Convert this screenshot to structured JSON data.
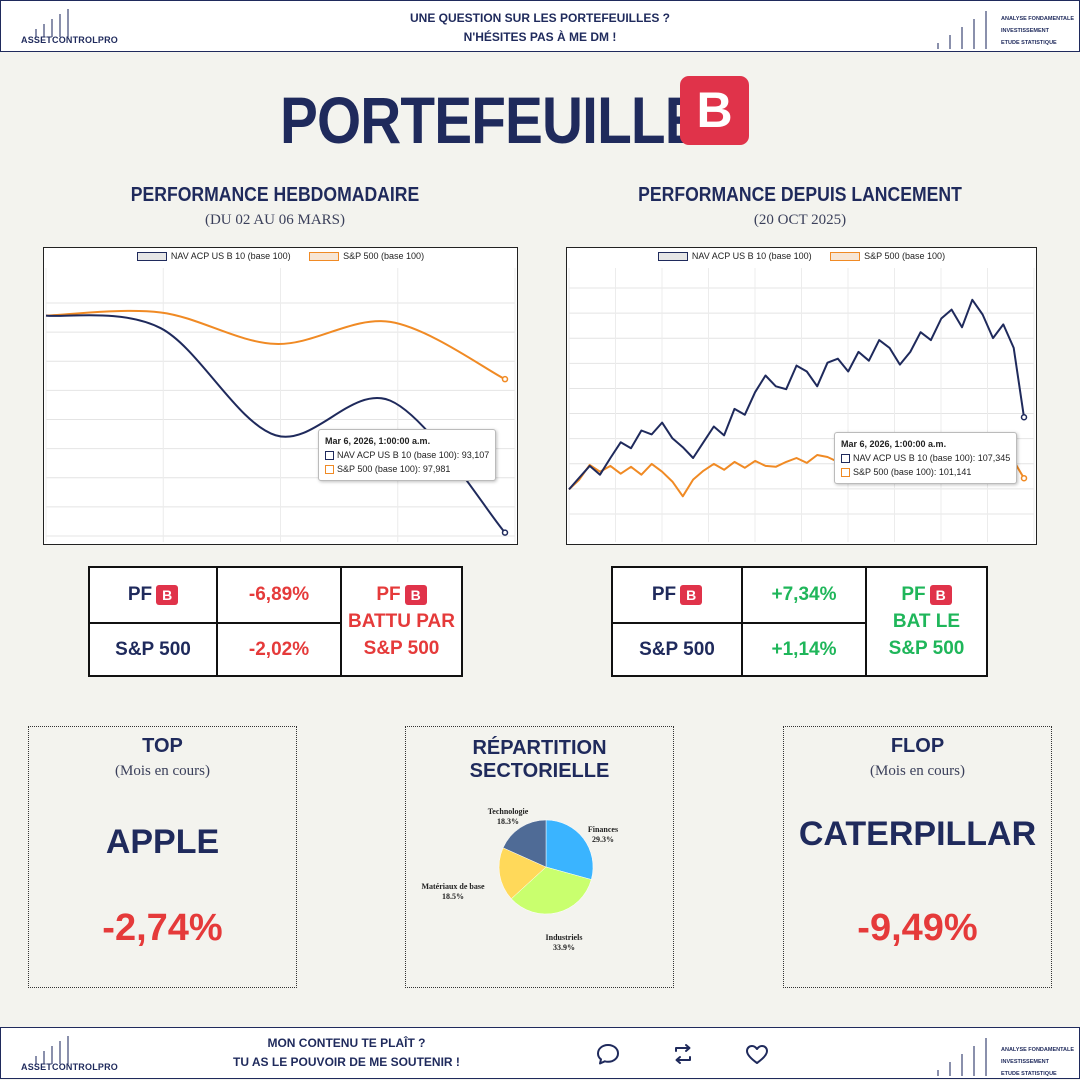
{
  "header": {
    "brand": "ASSETCONTROLPRO",
    "message_line1": "UNE QUESTION SUR LES PORTEFEUILLES ?",
    "message_line2": "N'HÉSITES PAS À ME DM !",
    "tags": [
      "ANALYSE FONDAMENTALE",
      "INVESTISSEMENT",
      "ETUDE STATISTIQUE"
    ]
  },
  "title": {
    "text": "PORTEFEUILLE",
    "badge": "B"
  },
  "weekly": {
    "heading": "PERFORMANCE HEBDOMADAIRE",
    "subheading": "(DU 02 AU 06 MARS)",
    "tooltip": {
      "date": "Mar 6, 2026, 1:00:00 a.m.",
      "nav": "NAV ACP US B 10 (base 100): 93,107",
      "sp": "S&P 500 (base 100): 97,981"
    },
    "table": {
      "row1_label": "PF",
      "row1_value": "-6,89%",
      "row2_label": "S&P 500",
      "row2_value": "-2,02%",
      "verdict_pf": "PF",
      "verdict_l2": "BATTU PAR",
      "verdict_l3": "S&P 500"
    }
  },
  "since_launch": {
    "heading": "PERFORMANCE DEPUIS LANCEMENT",
    "subheading": "(20 OCT 2025)",
    "tooltip": {
      "date": "Mar 6, 2026, 1:00:00 a.m.",
      "nav": "NAV ACP US B 10 (base 100): 107,345",
      "sp": "S&P 500 (base 100): 101,141"
    },
    "table": {
      "row1_label": "PF",
      "row1_value": "+7,34%",
      "row2_label": "S&P 500",
      "row2_value": "+1,14%",
      "verdict_pf": "PF",
      "verdict_l2": "BAT LE",
      "verdict_l3": "S&P 500"
    }
  },
  "chart_data": [
    {
      "type": "line",
      "title": "",
      "series": [
        {
          "name": "NAV ACP US B 10 (base 100)",
          "color": "#1f2a5c",
          "x": [
            0,
            1,
            2,
            3,
            4
          ],
          "values": [
            100,
            99.6,
            96.2,
            97.3,
            93.107
          ]
        },
        {
          "name": "S&P 500 (base 100)",
          "color": "#f08a24",
          "x": [
            0,
            1,
            2,
            3,
            4
          ],
          "values": [
            100,
            100.1,
            99.1,
            99.8,
            97.981
          ]
        }
      ],
      "grid": true,
      "legend": "top"
    },
    {
      "type": "line",
      "title": "",
      "series": [
        {
          "name": "NAV ACP US B 10 (base 100)",
          "color": "#1f2a5c",
          "values": [
            100,
            101.2,
            102.4,
            101.5,
            103.2,
            104.8,
            104.2,
            106.0,
            105.6,
            106.8,
            105.2,
            104.3,
            103.2,
            104.8,
            106.4,
            105.5,
            108.2,
            107.6,
            109.9,
            111.6,
            110.5,
            110.2,
            112.6,
            112.0,
            110.5,
            112.9,
            113.3,
            112.0,
            114.0,
            113.1,
            115.2,
            114.4,
            112.7,
            114.0,
            116.0,
            115.2,
            117.4,
            118.3,
            116.5,
            119.3,
            117.8,
            115.4,
            116.8,
            114.4,
            107.345
          ]
        },
        {
          "name": "S&P 500 (base 100)",
          "color": "#f08a24",
          "values": [
            100,
            101.0,
            102.5,
            101.8,
            102.4,
            101.6,
            102.3,
            101.5,
            102.6,
            101.8,
            100.8,
            99.3,
            101.0,
            101.9,
            102.6,
            102.0,
            102.8,
            102.2,
            102.9,
            102.4,
            102.3,
            102.8,
            103.2,
            102.7,
            103.5,
            103.3,
            102.8,
            103.2,
            103.0,
            102.9,
            103.3,
            102.7,
            103.1,
            103.4,
            102.8,
            103.3,
            103.6,
            103.2,
            103.9,
            103.4,
            103.7,
            103.1,
            103.5,
            102.9,
            101.141
          ]
        }
      ],
      "grid": true,
      "legend": "top"
    },
    {
      "type": "pie",
      "title": "RÉPARTITION SECTORIELLE",
      "categories": [
        "Finances",
        "Industriels",
        "Matériaux de base",
        "Technologie"
      ],
      "values": [
        29.3,
        33.9,
        18.5,
        18.3
      ],
      "colors": [
        "#3ab4ff",
        "#c9ff6e",
        "#ffd95a",
        "#4f6b96"
      ]
    }
  ],
  "top": {
    "heading": "TOP",
    "sub": "(Mois en cours)",
    "name": "APPLE",
    "pct": "-2,74%"
  },
  "flop": {
    "heading": "FLOP",
    "sub": "(Mois en cours)",
    "name": "CATERPILLAR",
    "pct": "-9,49%"
  },
  "sector": {
    "heading": "RÉPARTITION SECTORIELLE",
    "labels": {
      "tech": "Technologie",
      "tech_pct": "18.3%",
      "fin": "Finances",
      "fin_pct": "29.3%",
      "mat": "Matériaux de base",
      "mat_pct": "18.5%",
      "ind": "Industriels",
      "ind_pct": "33.9%"
    }
  },
  "footer": {
    "brand": "ASSETCONTROLPRO",
    "message_line1": "MON CONTENU TE PLAÎT ?",
    "message_line2": "TU AS LE POUVOIR DE ME SOUTENIR !",
    "tags": [
      "ANALYSE FONDAMENTALE",
      "INVESTISSEMENT",
      "ETUDE STATISTIQUE"
    ],
    "icons": [
      "comment-icon",
      "repost-icon",
      "heart-icon"
    ]
  }
}
